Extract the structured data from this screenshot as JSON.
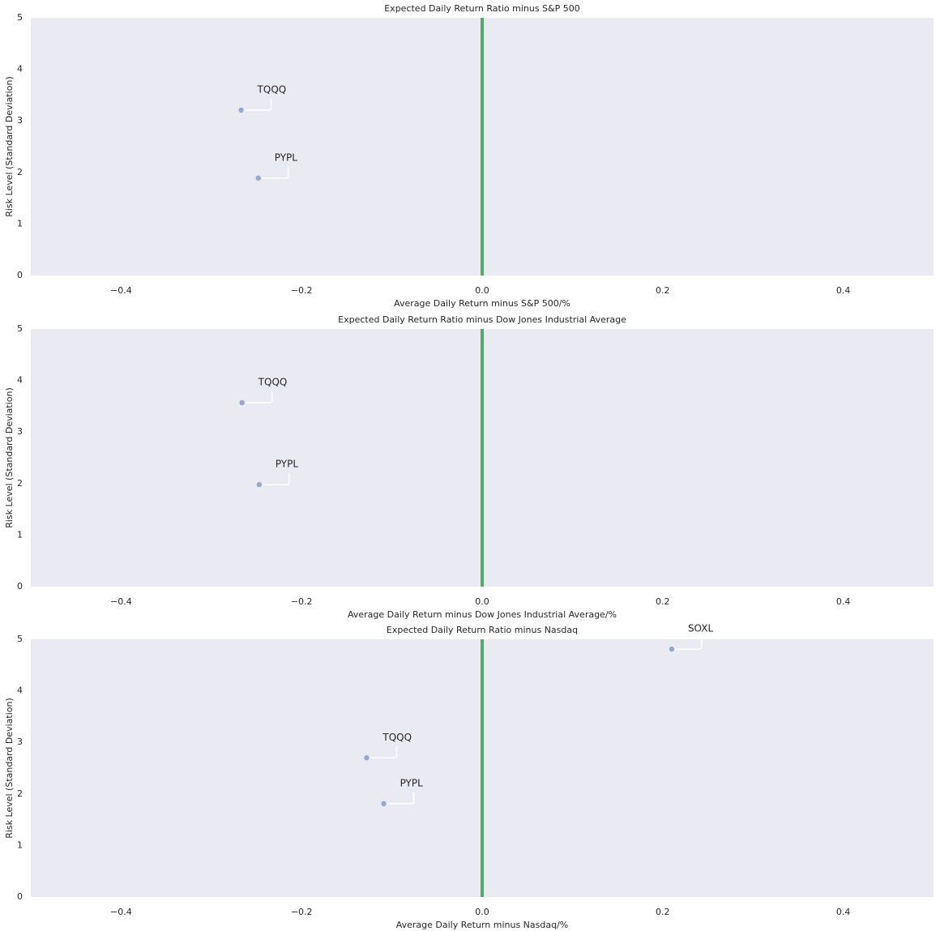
{
  "chart_data": [
    {
      "type": "scatter",
      "title": "Expected Daily Return Ratio minus S&P 500",
      "xlabel": "Average Daily Return minus S&P 500/%",
      "ylabel": "Risk Level (Standard Deviation)",
      "x": [
        -0.267,
        -0.248
      ],
      "y": [
        3.21,
        1.89
      ],
      "labels": [
        "TQQQ",
        "PYPL"
      ],
      "color": "#4c72b0",
      "vline": 0,
      "vline_color": "#55a868",
      "xlim": [
        -0.5,
        0.5
      ],
      "ylim": [
        0,
        5
      ],
      "xticks": [
        {
          "value": -0.4,
          "label": "−0.4"
        },
        {
          "value": -0.2,
          "label": "−0.2"
        },
        {
          "value": 0,
          "label": "0.0"
        },
        {
          "value": 0.2,
          "label": "0.2"
        },
        {
          "value": 0.4,
          "label": "0.4"
        }
      ],
      "yticks": [
        0,
        1,
        2,
        3,
        4,
        5
      ]
    },
    {
      "type": "scatter",
      "title": "Expected Daily Return Ratio minus Dow Jones Industrial Average",
      "xlabel": "Average Daily Return minus Dow Jones Industrial Average/%",
      "ylabel": "Risk Level (Standard Deviation)",
      "x": [
        -0.266,
        -0.247
      ],
      "y": [
        3.57,
        1.98
      ],
      "labels": [
        "TQQQ",
        "PYPL"
      ],
      "color": "#4c72b0",
      "vline": 0,
      "vline_color": "#55a868",
      "xlim": [
        -0.5,
        0.5
      ],
      "ylim": [
        0,
        5
      ],
      "xticks": [
        {
          "value": -0.4,
          "label": "−0.4"
        },
        {
          "value": -0.2,
          "label": "−0.2"
        },
        {
          "value": 0,
          "label": "0.0"
        },
        {
          "value": 0.2,
          "label": "0.2"
        },
        {
          "value": 0.4,
          "label": "0.4"
        }
      ],
      "yticks": [
        0,
        1,
        2,
        3,
        4,
        5
      ]
    },
    {
      "type": "scatter",
      "title": "Expected Daily Return Ratio minus Nasdaq",
      "xlabel": "Average Daily Return minus Nasdaq/%",
      "ylabel": "Risk Level (Standard Deviation)",
      "x": [
        0.21,
        -0.128,
        -0.109
      ],
      "y": [
        4.81,
        2.7,
        1.81
      ],
      "labels": [
        "SOXL",
        "TQQQ",
        "PYPL"
      ],
      "color": "#4c72b0",
      "vline": 0,
      "vline_color": "#55a868",
      "xlim": [
        -0.5,
        0.5
      ],
      "ylim": [
        0,
        5
      ],
      "xticks": [
        {
          "value": -0.4,
          "label": "−0.4"
        },
        {
          "value": -0.2,
          "label": "−0.2"
        },
        {
          "value": 0,
          "label": "0.0"
        },
        {
          "value": 0.2,
          "label": "0.2"
        },
        {
          "value": 0.4,
          "label": "0.4"
        }
      ],
      "yticks": [
        0,
        1,
        2,
        3,
        4,
        5
      ]
    }
  ]
}
